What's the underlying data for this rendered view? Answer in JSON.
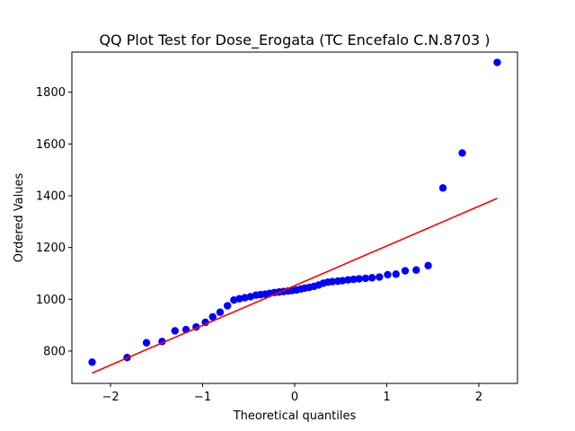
{
  "chart_data": {
    "type": "scatter",
    "title": "QQ Plot Test for Dose_Erogata (TC Encefalo C.N.8703 )",
    "xlabel": "Theoretical quantiles",
    "ylabel": "Ordered Values",
    "xlim": [
      -2.42,
      2.42
    ],
    "ylim": [
      675,
      1955
    ],
    "xticks": [
      -2,
      -1,
      0,
      1,
      2
    ],
    "xtick_labels": [
      "−2",
      "−1",
      "0",
      "1",
      "2"
    ],
    "yticks": [
      800,
      1000,
      1200,
      1400,
      1600,
      1800
    ],
    "ytick_labels": [
      "800",
      "1000",
      "1200",
      "1400",
      "1600",
      "1800"
    ],
    "grid": false,
    "colors": {
      "points": "#0000ff",
      "fit_line": "#ff0000",
      "axes": "#000000"
    },
    "series": [
      {
        "kind": "points",
        "x": [
          -2.2,
          -1.82,
          -1.61,
          -1.44,
          -1.3,
          -1.18,
          -1.07,
          -0.97,
          -0.89,
          -0.81,
          -0.73,
          -0.66,
          -0.6,
          -0.54,
          -0.48,
          -0.42,
          -0.37,
          -0.32,
          -0.27,
          -0.22,
          -0.17,
          -0.12,
          -0.07,
          -0.03,
          0.02,
          0.07,
          0.11,
          0.16,
          0.21,
          0.26,
          0.31,
          0.36,
          0.41,
          0.47,
          0.52,
          0.58,
          0.64,
          0.7,
          0.77,
          0.84,
          0.92,
          1.01,
          1.1,
          1.2,
          1.32,
          1.45,
          1.61,
          1.82,
          2.2
        ],
        "y": [
          757,
          775,
          832,
          837,
          878,
          883,
          893,
          911,
          932,
          950,
          975,
          997,
          1002,
          1006,
          1010,
          1016,
          1018,
          1020,
          1023,
          1026,
          1028,
          1030,
          1032,
          1034,
          1036,
          1040,
          1043,
          1046,
          1050,
          1055,
          1062,
          1066,
          1068,
          1070,
          1072,
          1075,
          1077,
          1079,
          1081,
          1083,
          1086,
          1095,
          1097,
          1110,
          1113,
          1130,
          1430,
          1565,
          1915
        ]
      },
      {
        "kind": "fit-line",
        "x": [
          -2.2,
          2.2
        ],
        "y": [
          715,
          1390
        ]
      }
    ]
  }
}
